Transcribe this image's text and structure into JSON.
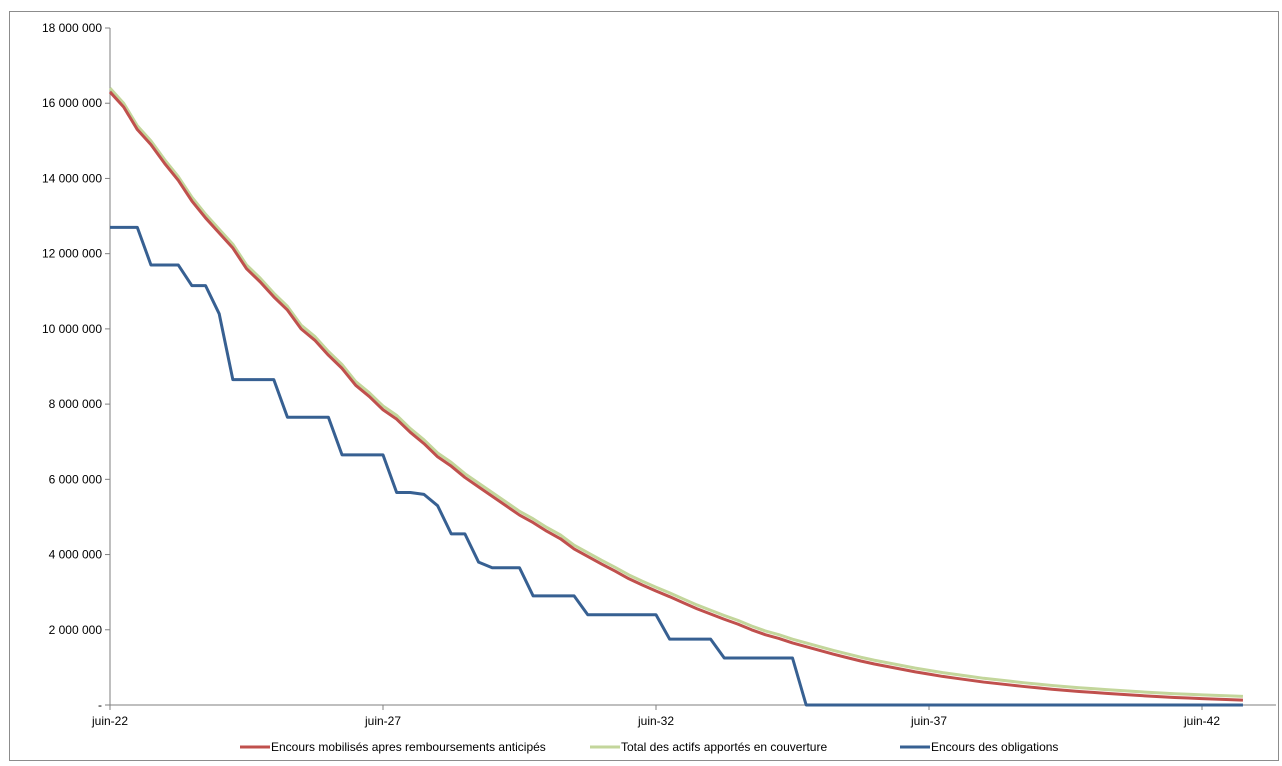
{
  "chart_data": {
    "type": "line",
    "title": "",
    "xlabel": "",
    "ylabel": "",
    "x_range": [
      "2022-06",
      "2043-03"
    ],
    "x_step_months": 3,
    "ylim": [
      0,
      18000000
    ],
    "y_ticks": [
      0,
      2000000,
      4000000,
      6000000,
      8000000,
      10000000,
      12000000,
      14000000,
      16000000,
      18000000
    ],
    "y_tick_labels": [
      "-",
      "2 000 000",
      "4 000 000",
      "6 000 000",
      "8 000 000",
      "10 000 000",
      "12 000 000",
      "14 000 000",
      "16 000 000",
      "18 000 000"
    ],
    "x_tick_labels": [
      {
        "date": "2022-06",
        "label": "juin-22"
      },
      {
        "date": "2027-06",
        "label": "juin-27"
      },
      {
        "date": "2032-06",
        "label": "juin-32"
      },
      {
        "date": "2037-06",
        "label": "juin-37"
      },
      {
        "date": "2042-06",
        "label": "juin-42"
      }
    ],
    "grid": false,
    "legend_position": "bottom",
    "series": [
      {
        "name": "Encours mobilisés apres remboursements anticipés",
        "color": "#c0504d",
        "values": [
          16300000,
          15900000,
          15300000,
          14900000,
          14400000,
          13950000,
          13400000,
          12950000,
          12550000,
          12150000,
          11600000,
          11250000,
          10850000,
          10500000,
          10000000,
          9700000,
          9300000,
          8950000,
          8500000,
          8200000,
          7850000,
          7600000,
          7250000,
          6950000,
          6600000,
          6350000,
          6050000,
          5800000,
          5550000,
          5300000,
          5050000,
          4850000,
          4620000,
          4420000,
          4150000,
          3950000,
          3750000,
          3560000,
          3360000,
          3190000,
          3030000,
          2880000,
          2720000,
          2560000,
          2420000,
          2280000,
          2150000,
          2000000,
          1870000,
          1770000,
          1650000,
          1550000,
          1450000,
          1350000,
          1260000,
          1170000,
          1090000,
          1020000,
          950000,
          880000,
          820000,
          760000,
          710000,
          660000,
          610000,
          570000,
          530000,
          490000,
          455000,
          420000,
          390000,
          360000,
          335000,
          310000,
          285000,
          262000,
          240000,
          220000,
          200000,
          185000,
          170000,
          155000,
          142000,
          130000
        ]
      },
      {
        "name": "Total des actifs apportés en couverture",
        "color": "#c3d69b",
        "values": [
          16400000,
          16000000,
          15400000,
          15000000,
          14500000,
          14050000,
          13500000,
          13050000,
          12650000,
          12250000,
          11700000,
          11350000,
          10950000,
          10600000,
          10100000,
          9800000,
          9400000,
          9050000,
          8600000,
          8300000,
          7950000,
          7700000,
          7350000,
          7050000,
          6700000,
          6450000,
          6150000,
          5900000,
          5650000,
          5400000,
          5150000,
          4950000,
          4720000,
          4520000,
          4250000,
          4050000,
          3850000,
          3660000,
          3460000,
          3290000,
          3130000,
          2980000,
          2820000,
          2660000,
          2520000,
          2380000,
          2250000,
          2100000,
          1970000,
          1870000,
          1750000,
          1650000,
          1550000,
          1450000,
          1360000,
          1270000,
          1190000,
          1120000,
          1050000,
          980000,
          920000,
          860000,
          810000,
          760000,
          710000,
          670000,
          630000,
          590000,
          555000,
          520000,
          490000,
          460000,
          435000,
          410000,
          385000,
          362000,
          340000,
          320000,
          300000,
          285000,
          270000,
          255000,
          242000,
          230000
        ]
      },
      {
        "name": "Encours des obligations",
        "color": "#376092",
        "values": [
          12700000,
          12700000,
          12700000,
          11700000,
          11700000,
          11700000,
          11150000,
          11150000,
          10400000,
          8650000,
          8650000,
          8650000,
          8650000,
          7650000,
          7650000,
          7650000,
          7650000,
          6650000,
          6650000,
          6650000,
          6650000,
          5650000,
          5650000,
          5600000,
          5300000,
          4550000,
          4550000,
          3800000,
          3650000,
          3650000,
          3650000,
          2900000,
          2900000,
          2900000,
          2900000,
          2400000,
          2400000,
          2400000,
          2400000,
          2400000,
          2400000,
          1750000,
          1750000,
          1750000,
          1750000,
          1250000,
          1250000,
          1250000,
          1250000,
          1250000,
          1250000,
          0,
          0,
          0,
          0,
          0,
          0,
          0,
          0,
          0,
          0,
          0,
          0,
          0,
          0,
          0,
          0,
          0,
          0,
          0,
          0,
          0,
          0,
          0,
          0,
          0,
          0,
          0,
          0,
          0,
          0,
          0,
          0,
          0
        ]
      }
    ]
  }
}
